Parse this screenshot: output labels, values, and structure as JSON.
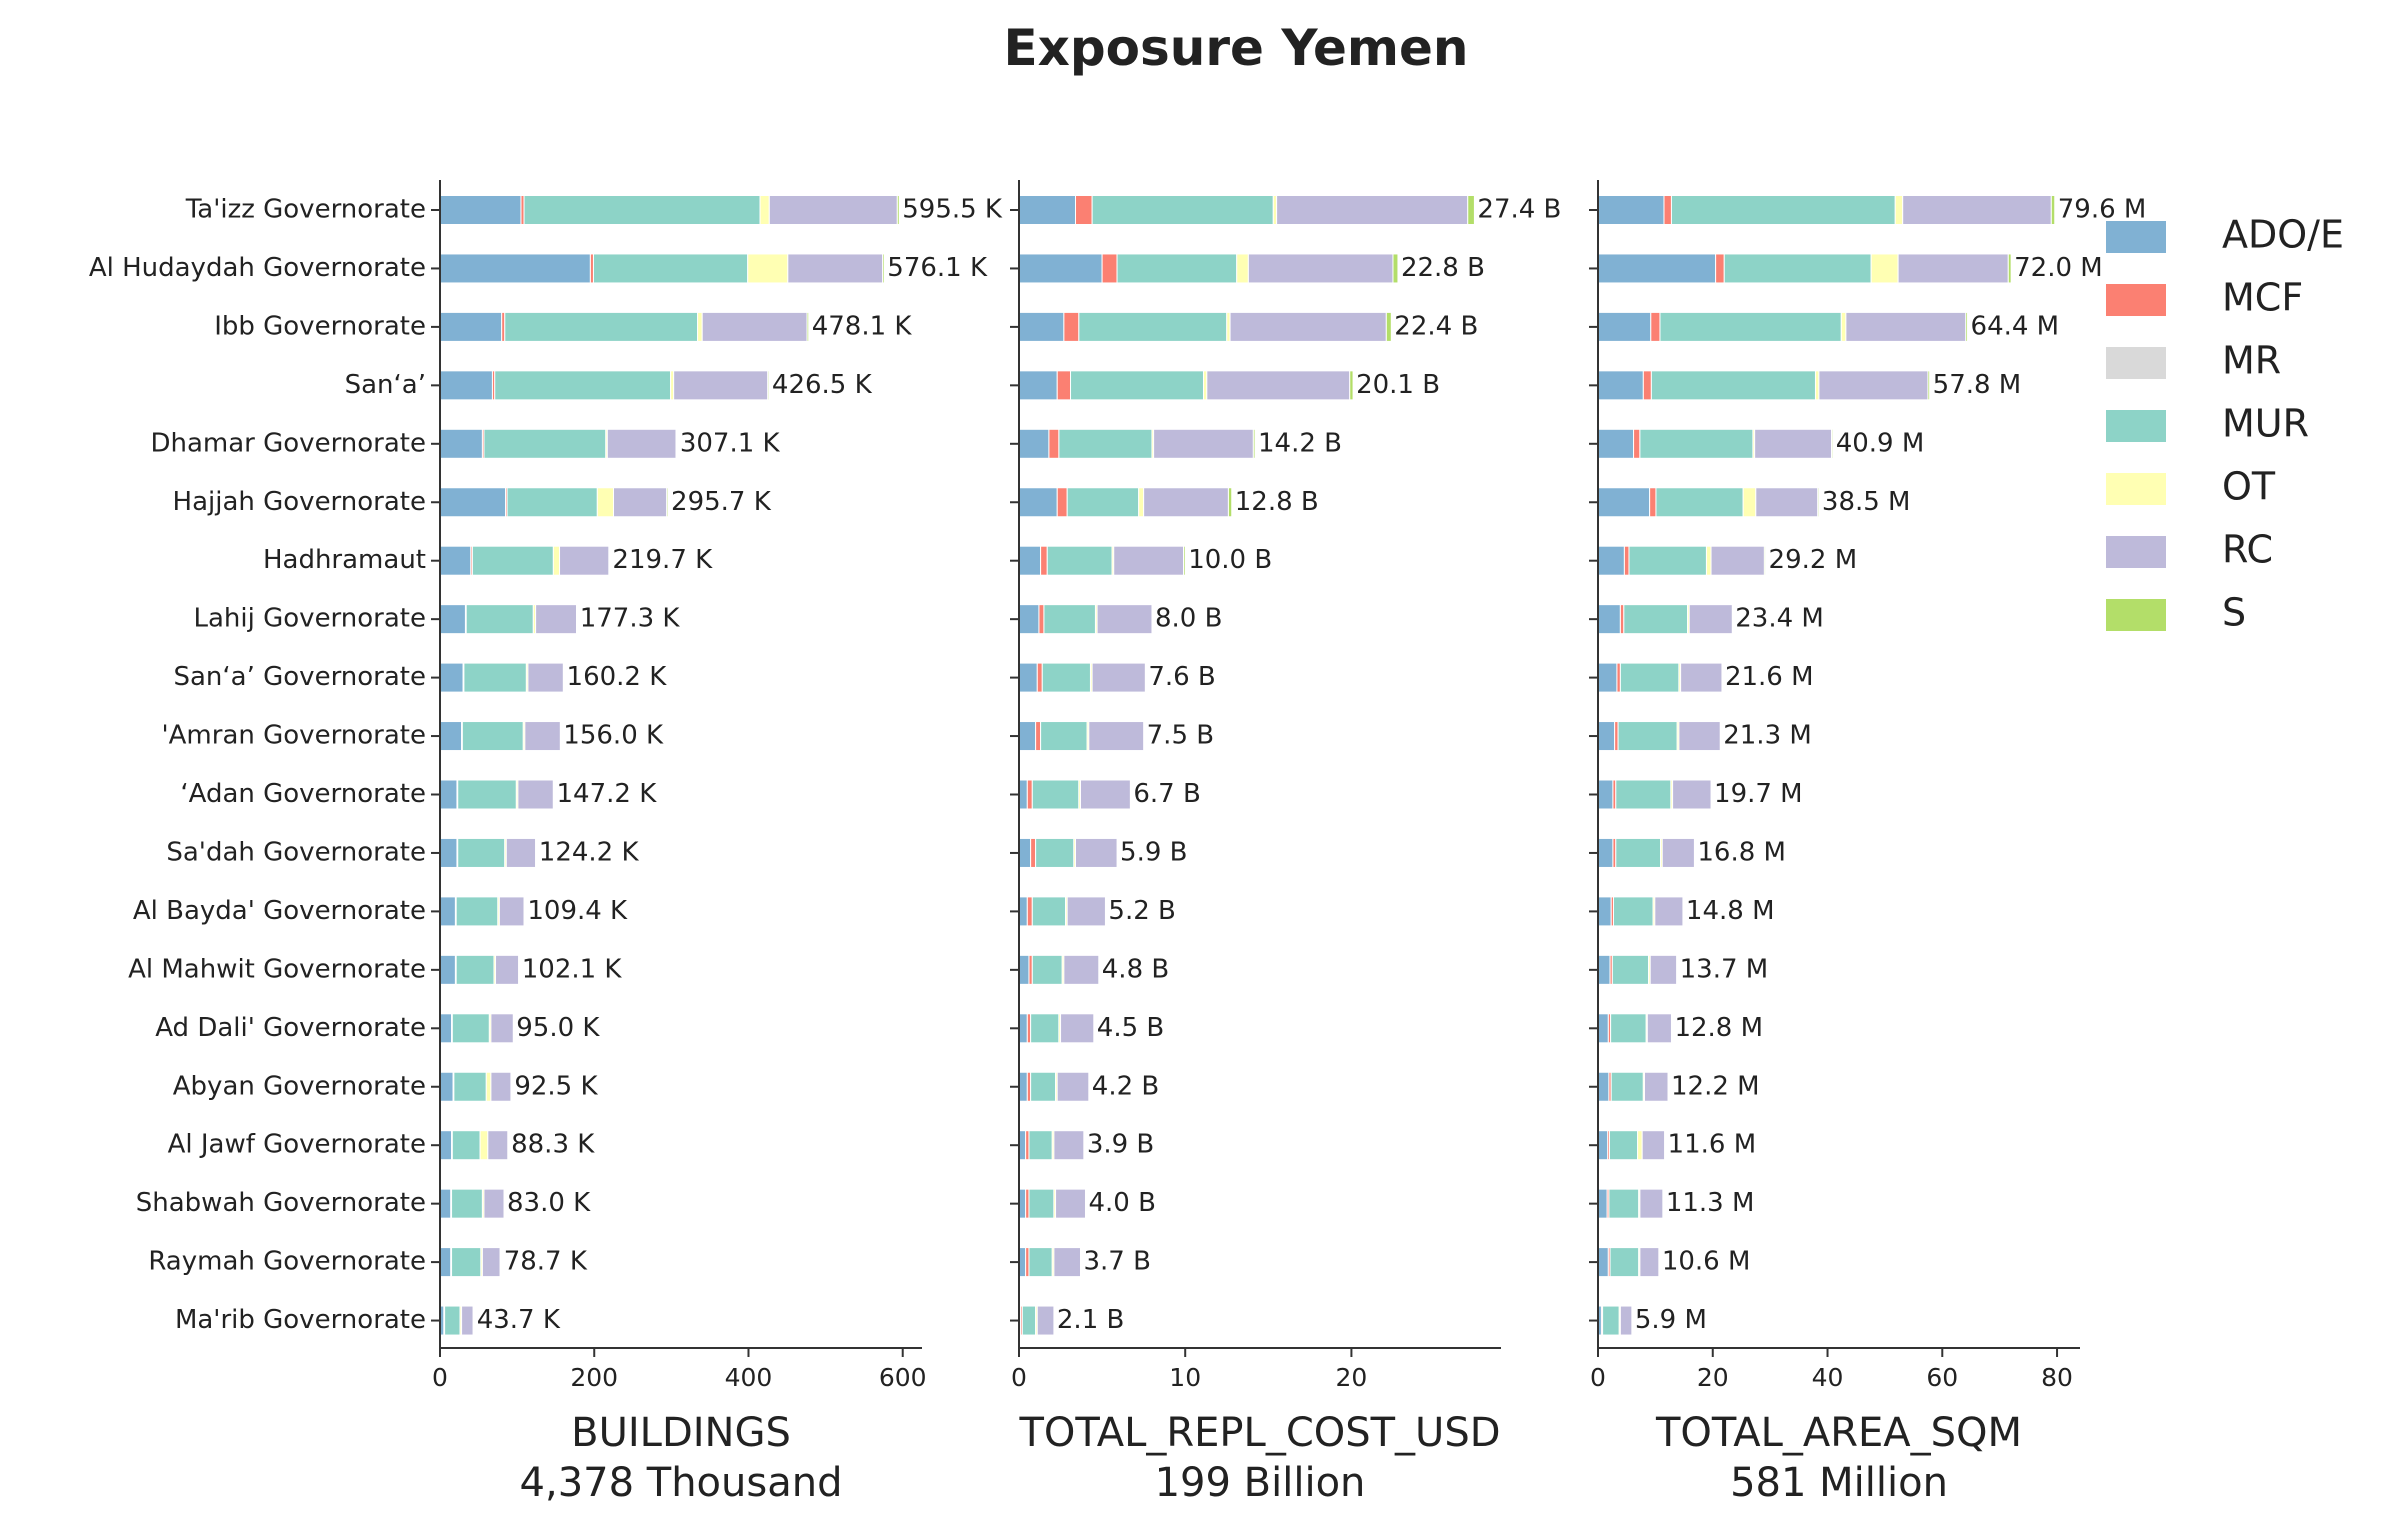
{
  "chart_data": {
    "type": "bar",
    "orientation": "horizontal",
    "stacked": true,
    "title": "Exposure Yemen",
    "categories": [
      "Ta'izz Governorate",
      "Al Hudaydah Governorate",
      "Ibb Governorate",
      "San‘a’",
      "Dhamar Governorate",
      "Hajjah Governorate",
      "Hadhramaut",
      "Lahij Governorate",
      "San‘a’ Governorate",
      "'Amran Governorate",
      "‘Adan Governorate",
      "Sa'dah Governorate",
      "Al Bayda' Governorate",
      "Al Mahwit Governorate",
      "Ad Dali' Governorate",
      "Abyan Governorate",
      "Al Jawf Governorate",
      "Shabwah Governorate",
      "Raymah Governorate",
      "Ma'rib Governorate"
    ],
    "legend": {
      "placement": "right",
      "entries": [
        {
          "name": "ADO/E",
          "color": "#80b1d3"
        },
        {
          "name": "MCF",
          "color": "#fb8072"
        },
        {
          "name": "MR",
          "color": "#d9d9d9"
        },
        {
          "name": "MUR",
          "color": "#8dd3c7"
        },
        {
          "name": "OT",
          "color": "#ffffb3"
        },
        {
          "name": "RC",
          "color": "#bebada"
        },
        {
          "name": "S",
          "color": "#b3de69"
        }
      ]
    },
    "panels": [
      {
        "xlabel": "BUILDINGS",
        "total_label": "4,378 Thousand",
        "xlim": [
          0,
          625
        ],
        "xticks": [
          0,
          200,
          400,
          600
        ],
        "totals": [
          595.5,
          576.1,
          478.1,
          426.5,
          307.1,
          295.7,
          219.7,
          177.3,
          160.2,
          156.0,
          147.2,
          124.2,
          109.4,
          102.1,
          95.0,
          92.5,
          88.3,
          83.0,
          78.7,
          43.7
        ],
        "value_labels": [
          "595.5 K",
          "576.1 K",
          "478.1 K",
          "426.5 K",
          "307.1 K",
          "295.7 K",
          "219.7 K",
          "177.3 K",
          "160.2 K",
          "156.0 K",
          "147.2 K",
          "124.2 K",
          "109.4 K",
          "102.1 K",
          "95.0 K",
          "92.5 K",
          "88.3 K",
          "83.0 K",
          "78.7 K",
          "43.7 K"
        ],
        "segments": [
          [
            105,
            4,
            0,
            306,
            12,
            166,
            2.5
          ],
          [
            195,
            4,
            0,
            200,
            52,
            123,
            2.1
          ],
          [
            80,
            4,
            0,
            250,
            6,
            136,
            2.1
          ],
          [
            68,
            3,
            0,
            228,
            4,
            122,
            1.5
          ],
          [
            55,
            2,
            0,
            158,
            2,
            89,
            1.1
          ],
          [
            85,
            2,
            0,
            117,
            21,
            69,
            1.7
          ],
          [
            40,
            2,
            0,
            105,
            8,
            64,
            0.7
          ],
          [
            33,
            1,
            0,
            87,
            3,
            53,
            0.3
          ],
          [
            30,
            1,
            0,
            81,
            2,
            46,
            0.2
          ],
          [
            28,
            1,
            0,
            79,
            2,
            46,
            0.0
          ],
          [
            22,
            1,
            0,
            76,
            2,
            46,
            0.2
          ],
          [
            22,
            1,
            0,
            61,
            2,
            38,
            0.2
          ],
          [
            20,
            1,
            0,
            54,
            2,
            32,
            0.4
          ],
          [
            20,
            1,
            0,
            49,
            2,
            30,
            0.1
          ],
          [
            15,
            1,
            0,
            48,
            2,
            29,
            0.0
          ],
          [
            17,
            1,
            0,
            42,
            6,
            26,
            0.5
          ],
          [
            15,
            1,
            0,
            36,
            10,
            26,
            0.3
          ],
          [
            14,
            1,
            0,
            40,
            2,
            26,
            0.0
          ],
          [
            14,
            1,
            0,
            38,
            2,
            23,
            0.7
          ],
          [
            5,
            1,
            0,
            20,
            2,
            15,
            0.7
          ]
        ]
      },
      {
        "xlabel": "TOTAL_REPL_COST_USD",
        "total_label": "199 Billion",
        "xlim": [
          0,
          29
        ],
        "xticks": [
          0,
          10,
          20
        ],
        "totals": [
          27.4,
          22.8,
          22.4,
          20.1,
          14.2,
          12.8,
          10.0,
          8.0,
          7.6,
          7.5,
          6.7,
          5.9,
          5.2,
          4.8,
          4.5,
          4.2,
          3.9,
          4.0,
          3.7,
          2.1
        ],
        "value_labels": [
          "27.4 B",
          "22.8 B",
          "22.4 B",
          "20.1 B",
          "14.2 B",
          "12.8 B",
          "10.0 B",
          "8.0 B",
          "7.6 B",
          "7.5 B",
          "6.7 B",
          "5.9 B",
          "5.2 B",
          "4.8 B",
          "4.5 B",
          "4.2 B",
          "3.9 B",
          "4.0 B",
          "3.7 B",
          "2.1 B"
        ],
        "segments": [
          [
            3.4,
            1.0,
            0,
            10.9,
            0.2,
            11.5,
            0.4
          ],
          [
            5.0,
            0.9,
            0,
            7.2,
            0.7,
            8.7,
            0.3
          ],
          [
            2.7,
            0.9,
            0,
            8.9,
            0.2,
            9.4,
            0.3
          ],
          [
            2.3,
            0.8,
            0,
            8.0,
            0.2,
            8.6,
            0.2
          ],
          [
            1.8,
            0.6,
            0,
            5.6,
            0.1,
            6.0,
            0.1
          ],
          [
            2.3,
            0.6,
            0,
            4.3,
            0.3,
            5.1,
            0.2
          ],
          [
            1.3,
            0.4,
            0,
            3.9,
            0.1,
            4.2,
            0.1
          ],
          [
            1.2,
            0.3,
            0,
            3.1,
            0.1,
            3.3,
            0.0
          ],
          [
            1.1,
            0.3,
            0,
            2.9,
            0.1,
            3.2,
            0.0
          ],
          [
            1.0,
            0.3,
            0,
            2.8,
            0.1,
            3.3,
            0.0
          ],
          [
            0.5,
            0.3,
            0,
            2.8,
            0.1,
            3.0,
            0.0
          ],
          [
            0.7,
            0.3,
            0,
            2.3,
            0.1,
            2.5,
            0.0
          ],
          [
            0.5,
            0.3,
            0,
            2.0,
            0.1,
            2.3,
            0.0
          ],
          [
            0.6,
            0.2,
            0,
            1.8,
            0.1,
            2.1,
            0.0
          ],
          [
            0.5,
            0.2,
            0,
            1.7,
            0.1,
            2.0,
            0.0
          ],
          [
            0.5,
            0.2,
            0,
            1.5,
            0.1,
            1.9,
            0.0
          ],
          [
            0.4,
            0.2,
            0,
            1.4,
            0.1,
            1.8,
            0.0
          ],
          [
            0.4,
            0.2,
            0,
            1.5,
            0.1,
            1.8,
            0.0
          ],
          [
            0.4,
            0.2,
            0,
            1.4,
            0.1,
            1.6,
            0.0
          ],
          [
            0.1,
            0.1,
            0,
            0.8,
            0.1,
            1.0,
            0.0
          ]
        ]
      },
      {
        "xlabel": "TOTAL_AREA_SQM",
        "total_label": "581 Million",
        "xlim": [
          0,
          84
        ],
        "xticks": [
          0,
          20,
          40,
          60,
          80
        ],
        "totals": [
          79.6,
          72.0,
          64.4,
          57.8,
          40.9,
          38.5,
          29.2,
          23.4,
          21.6,
          21.3,
          19.7,
          16.8,
          14.8,
          13.7,
          12.8,
          12.2,
          11.6,
          11.3,
          10.6,
          5.9
        ],
        "value_labels": [
          "79.6 M",
          "72.0 M",
          "64.4 M",
          "57.8 M",
          "40.9 M",
          "38.5 M",
          "29.2 M",
          "23.4 M",
          "21.6 M",
          "21.3 M",
          "19.7 M",
          "16.8 M",
          "14.8 M",
          "13.7 M",
          "12.8 M",
          "12.2 M",
          "11.6 M",
          "11.3 M",
          "10.6 M",
          "5.9 M"
        ],
        "segments": [
          [
            11.5,
            1.3,
            0,
            39.0,
            1.3,
            25.9,
            0.6
          ],
          [
            20.5,
            1.5,
            0,
            25.6,
            4.7,
            19.2,
            0.5
          ],
          [
            9.2,
            1.6,
            0,
            31.6,
            0.8,
            20.9,
            0.3
          ],
          [
            7.9,
            1.4,
            0,
            28.6,
            0.6,
            19.0,
            0.3
          ],
          [
            6.2,
            1.1,
            0,
            19.7,
            0.3,
            13.4,
            0.2
          ],
          [
            9.0,
            1.1,
            0,
            15.2,
            2.2,
            10.8,
            0.2
          ],
          [
            4.6,
            0.8,
            0,
            13.5,
            0.8,
            9.3,
            0.2
          ],
          [
            3.9,
            0.6,
            0,
            11.1,
            0.3,
            7.5,
            0.0
          ],
          [
            3.3,
            0.6,
            0,
            10.2,
            0.3,
            7.2,
            0.0
          ],
          [
            2.9,
            0.6,
            0,
            10.3,
            0.3,
            7.2,
            0.0
          ],
          [
            2.6,
            0.5,
            0,
            9.6,
            0.3,
            6.7,
            0.0
          ],
          [
            2.6,
            0.5,
            0,
            7.8,
            0.3,
            5.6,
            0.0
          ],
          [
            2.3,
            0.4,
            0,
            6.9,
            0.3,
            4.9,
            0.0
          ],
          [
            2.1,
            0.4,
            0,
            6.3,
            0.3,
            4.6,
            0.0
          ],
          [
            1.8,
            0.4,
            0,
            6.2,
            0.2,
            4.2,
            0.0
          ],
          [
            1.9,
            0.4,
            0,
            5.6,
            0.2,
            4.1,
            0.0
          ],
          [
            1.7,
            0.3,
            0,
            4.9,
            0.8,
            3.9,
            0.0
          ],
          [
            1.6,
            0.3,
            0,
            5.2,
            0.2,
            4.0,
            0.0
          ],
          [
            1.8,
            0.3,
            0,
            5.0,
            0.2,
            3.3,
            0.0
          ],
          [
            0.6,
            0.2,
            0,
            2.9,
            0.2,
            2.0,
            0.0
          ]
        ]
      }
    ]
  }
}
